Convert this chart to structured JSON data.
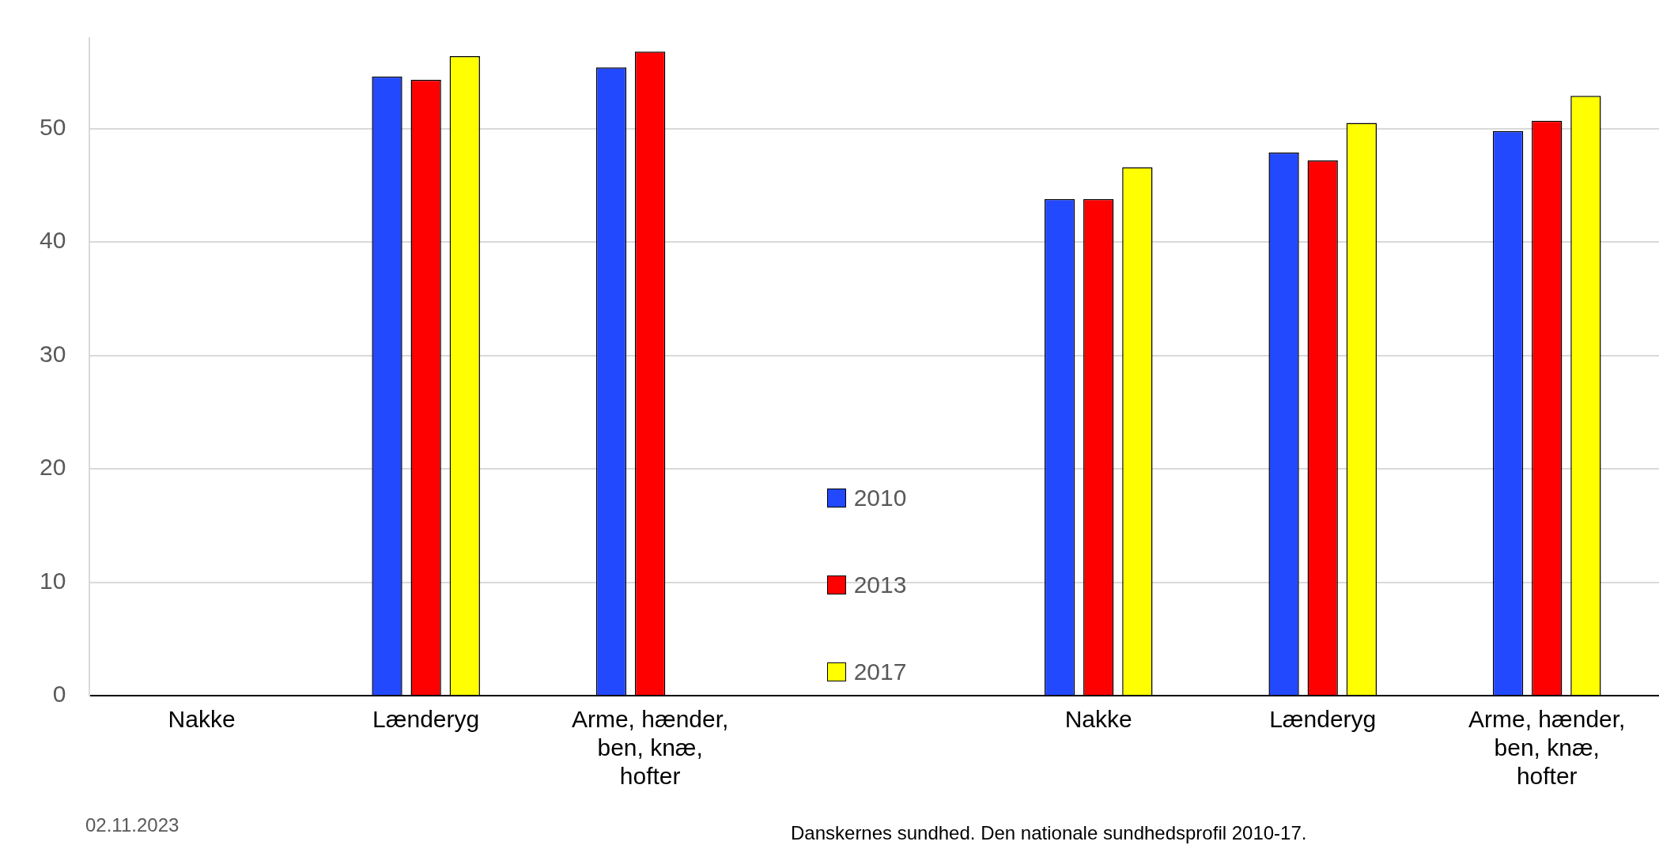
{
  "chart_data": {
    "type": "bar",
    "categories": [
      "Nakke",
      "Lænderyg",
      "Arme, hænder, ben, knæ, hofter",
      null,
      "Nakke",
      "Lænderyg",
      "Arme, hænder, ben, knæ, hofter"
    ],
    "series": [
      {
        "name": "2010",
        "color": "#2349fe",
        "values": [
          null,
          54.6,
          55.4,
          null,
          43.8,
          47.9,
          49.8
        ]
      },
      {
        "name": "2013",
        "color": "#fe0000",
        "values": [
          null,
          54.3,
          56.8,
          null,
          43.8,
          47.2,
          50.7
        ]
      },
      {
        "name": "2017",
        "color": "#ffff00",
        "values": [
          null,
          56.4,
          null,
          null,
          46.6,
          50.5,
          52.9
        ]
      }
    ],
    "ylim": [
      0,
      58
    ],
    "yticks": [
      0,
      10,
      20,
      30,
      40,
      50
    ],
    "grid": "y",
    "legend": "bottom",
    "annotations": [
      "02.11.2023",
      "Danskernes sundhed. Den nationale sundhedsprofil 2010-17."
    ]
  }
}
